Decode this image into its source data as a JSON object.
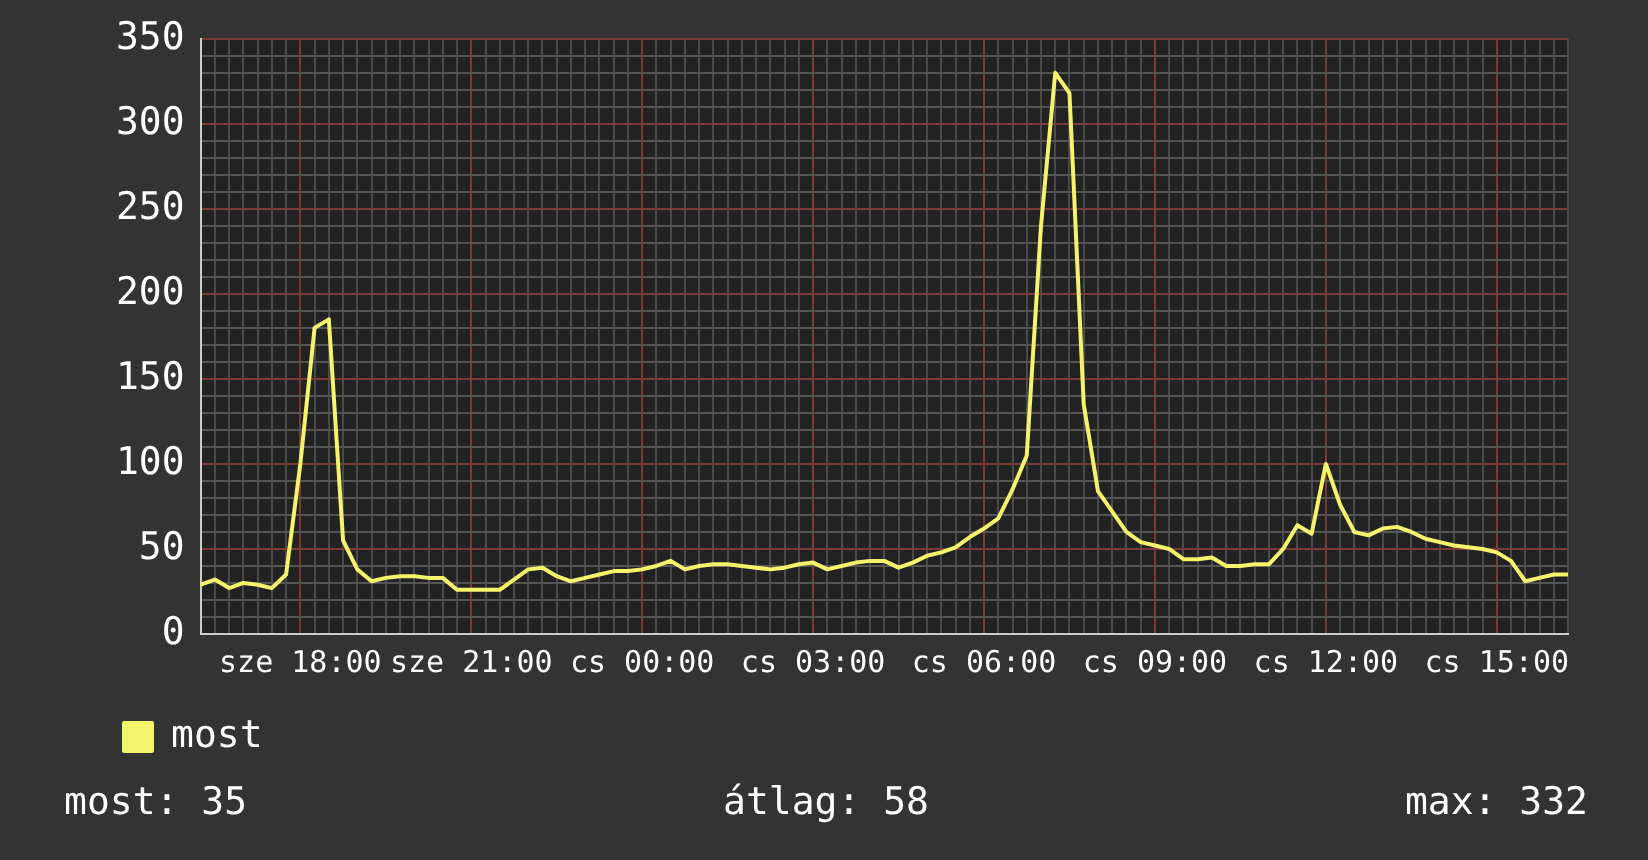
{
  "chart_data": {
    "type": "line",
    "ylim": [
      0,
      350
    ],
    "categories": [
      null,
      null,
      null,
      null,
      null,
      null,
      null,
      "sze 18:00",
      null,
      null,
      null,
      null,
      null,
      null,
      null,
      null,
      null,
      null,
      null,
      "sze 21:00",
      null,
      null,
      null,
      null,
      null,
      null,
      null,
      null,
      null,
      null,
      null,
      "cs 00:00",
      null,
      null,
      null,
      null,
      null,
      null,
      null,
      null,
      null,
      null,
      null,
      "cs 03:00",
      null,
      null,
      null,
      null,
      null,
      null,
      null,
      null,
      null,
      null,
      null,
      "cs 06:00",
      null,
      null,
      null,
      null,
      null,
      null,
      null,
      null,
      null,
      null,
      null,
      "cs 09:00",
      null,
      null,
      null,
      null,
      null,
      null,
      null,
      null,
      null,
      null,
      null,
      "cs 12:00",
      null,
      null,
      null,
      null,
      null,
      null,
      null,
      null,
      null,
      null,
      null,
      "cs 15:00",
      null,
      null,
      null,
      null,
      null
    ],
    "yticks": [
      0,
      {
        "value": 10,
        "label": null
      },
      {
        "value": 20,
        "label": null
      },
      {
        "value": 30,
        "label": null
      },
      {
        "value": 40,
        "label": null
      },
      50,
      {
        "value": 60,
        "label": null
      },
      {
        "value": 70,
        "label": null
      },
      {
        "value": 80,
        "label": null
      },
      {
        "value": 90,
        "label": null
      },
      100,
      {
        "value": 110,
        "label": null
      },
      {
        "value": 120,
        "label": null
      },
      {
        "value": 130,
        "label": null
      },
      {
        "value": 140,
        "label": null
      },
      150,
      {
        "value": 160,
        "label": null
      },
      {
        "value": 170,
        "label": null
      },
      {
        "value": 180,
        "label": null
      },
      {
        "value": 190,
        "label": null
      },
      200,
      {
        "value": 210,
        "label": null
      },
      {
        "value": 220,
        "label": null
      },
      {
        "value": 230,
        "label": null
      },
      {
        "value": 240,
        "label": null
      },
      250,
      {
        "value": 260,
        "label": null
      },
      {
        "value": 270,
        "label": null
      },
      {
        "value": 280,
        "label": null
      },
      {
        "value": 290,
        "label": null
      },
      300,
      {
        "value": 310,
        "label": null
      },
      {
        "value": 320,
        "label": null
      },
      {
        "value": 330,
        "label": null
      },
      {
        "value": 340,
        "label": null
      },
      350
    ],
    "grid": true,
    "legend": "bottom left",
    "marker": "none",
    "line_style": "solid",
    "series": [
      {
        "name": "most",
        "color": "#f4f46c",
        "values": [
          29,
          32,
          27,
          30,
          29,
          27,
          35,
          100,
          180,
          185,
          55,
          38,
          31,
          33,
          34,
          34,
          33,
          33,
          26,
          26,
          26,
          26,
          32,
          38,
          39,
          34,
          31,
          33,
          35,
          37,
          37,
          38,
          40,
          43,
          38,
          40,
          41,
          41,
          40,
          39,
          38,
          39,
          41,
          42,
          38,
          40,
          42,
          43,
          43,
          39,
          42,
          46,
          48,
          51,
          57,
          62,
          68,
          85,
          105,
          240,
          330,
          318,
          135,
          84,
          72,
          60,
          54,
          52,
          50,
          44,
          44,
          45,
          40,
          40,
          41,
          41,
          50,
          64,
          59,
          100,
          76,
          60,
          58,
          62,
          63,
          60,
          56,
          54,
          52,
          51,
          50,
          48,
          43,
          31,
          33,
          35,
          35
        ]
      }
    ],
    "annotations": [
      "most: 35",
      "átlag: 58",
      "max: 332"
    ]
  }
}
